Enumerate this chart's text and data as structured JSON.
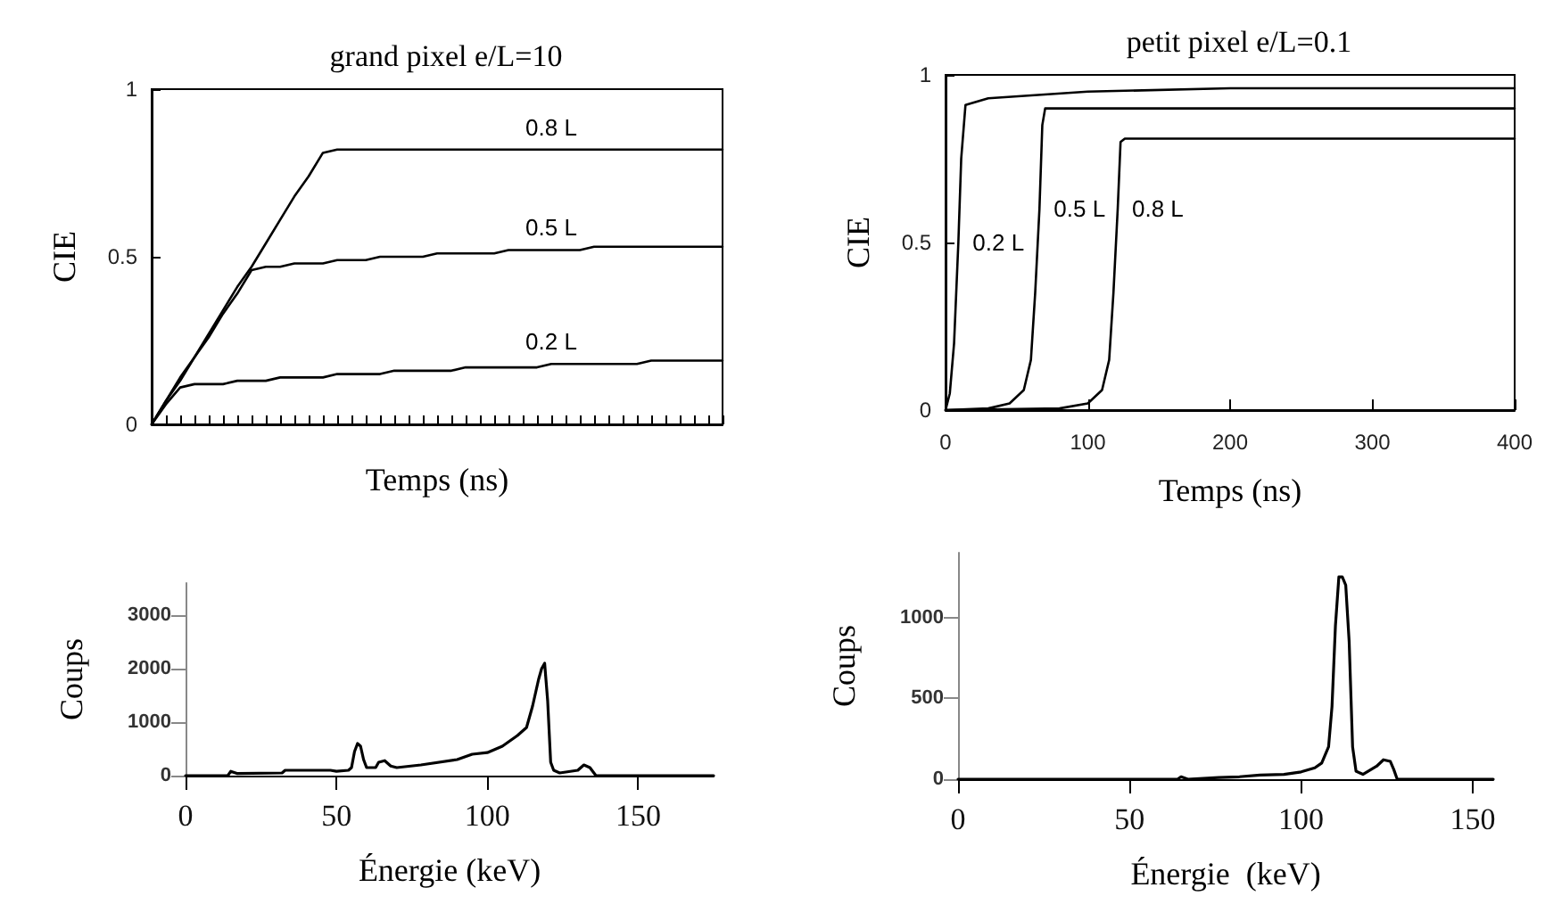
{
  "chart_data": [
    {
      "type": "line",
      "title": "grand pixel e/L=10",
      "xlabel": "Temps (ns)",
      "ylabel": "CIE",
      "categories": [
        null,
        null,
        null,
        null,
        null,
        null,
        null,
        null,
        null,
        null,
        null,
        null,
        null,
        null,
        null,
        null,
        null,
        null,
        null,
        null,
        null,
        null,
        null,
        null,
        null,
        null,
        null,
        null,
        null,
        null,
        null,
        null,
        null,
        null,
        null,
        null,
        null,
        null,
        null,
        null,
        null
      ],
      "ylim": [
        0,
        1
      ],
      "yticks": [
        0,
        0.5,
        1
      ],
      "tick_labels": "y",
      "marker": "none",
      "line_style": "solid",
      "series": [
        {
          "name": "0.8 L",
          "color": "#000000",
          "values": [
            0,
            0.07,
            0.14,
            0.2,
            0.27,
            0.34,
            0.41,
            0.47,
            0.54,
            0.61,
            0.68,
            0.74,
            0.81,
            0.82,
            0.82,
            0.82,
            0.82,
            0.82,
            0.82,
            0.82,
            0.82,
            0.82,
            0.82,
            0.82,
            0.82,
            0.82,
            0.82,
            0.82,
            0.82,
            0.82,
            0.82,
            0.82,
            0.82,
            0.82,
            0.82,
            0.82,
            0.82,
            0.82,
            0.82,
            0.82,
            0.82
          ]
        },
        {
          "name": "0.5 L",
          "color": "#000000",
          "values": [
            0,
            0.07,
            0.13,
            0.2,
            0.26,
            0.33,
            0.39,
            0.46,
            0.47,
            0.47,
            0.48,
            0.48,
            0.48,
            0.49,
            0.49,
            0.49,
            0.5,
            0.5,
            0.5,
            0.5,
            0.51,
            0.51,
            0.51,
            0.51,
            0.51,
            0.52,
            0.52,
            0.52,
            0.52,
            0.52,
            0.52,
            0.53,
            0.53,
            0.53,
            0.53,
            0.53,
            0.53,
            0.53,
            0.53,
            0.53,
            0.53
          ]
        },
        {
          "name": "0.2 L",
          "color": "#000000",
          "values": [
            0,
            0.06,
            0.11,
            0.12,
            0.12,
            0.12,
            0.13,
            0.13,
            0.13,
            0.14,
            0.14,
            0.14,
            0.14,
            0.15,
            0.15,
            0.15,
            0.15,
            0.16,
            0.16,
            0.16,
            0.16,
            0.16,
            0.17,
            0.17,
            0.17,
            0.17,
            0.17,
            0.17,
            0.18,
            0.18,
            0.18,
            0.18,
            0.18,
            0.18,
            0.18,
            0.19,
            0.19,
            0.19,
            0.19,
            0.19,
            0.19
          ]
        }
      ]
    },
    {
      "type": "line",
      "title": "petit pixel e/L=0.1",
      "xlabel": "Temps (ns)",
      "ylabel": "CIE",
      "xlim": [
        0,
        400
      ],
      "xticks": [
        0,
        100,
        200,
        300,
        400
      ],
      "ylim": [
        0,
        1
      ],
      "yticks": [
        0,
        0.5,
        1
      ],
      "marker": "none",
      "line_style": "solid",
      "series": [
        {
          "name": "0.2 L",
          "color": "#000000",
          "x": [
            0,
            3,
            6,
            9,
            11,
            14,
            30,
            100,
            200,
            400
          ],
          "values": [
            0,
            0.05,
            0.2,
            0.5,
            0.75,
            0.91,
            0.93,
            0.95,
            0.96,
            0.96
          ]
        },
        {
          "name": "0.5 L",
          "color": "#000000",
          "x": [
            0,
            30,
            45,
            55,
            60,
            63,
            66,
            68,
            70,
            400
          ],
          "values": [
            0,
            0.005,
            0.02,
            0.06,
            0.15,
            0.35,
            0.6,
            0.85,
            0.9,
            0.9
          ]
        },
        {
          "name": "0.8 L",
          "color": "#000000",
          "x": [
            0,
            80,
            100,
            110,
            115,
            118,
            121,
            123,
            126,
            400
          ],
          "values": [
            0,
            0.005,
            0.02,
            0.06,
            0.15,
            0.35,
            0.6,
            0.8,
            0.81,
            0.81
          ]
        }
      ]
    },
    {
      "type": "line",
      "xlabel": "Énergie (keV)",
      "ylabel": "Coups",
      "xlim": [
        0,
        175
      ],
      "xticks": [
        0,
        50,
        100,
        150
      ],
      "ylim": [
        0,
        3600
      ],
      "yticks": [
        0,
        1000,
        2000,
        3000
      ],
      "marker": "none",
      "line_style": "solid",
      "series": [
        {
          "color": "#000000",
          "x": [
            0,
            14,
            15,
            17,
            32,
            33,
            48,
            50,
            54,
            55,
            56,
            57,
            58,
            59,
            60,
            63,
            64,
            66,
            68,
            70,
            78,
            90,
            95,
            100,
            105,
            110,
            113,
            115,
            117,
            118,
            119,
            120,
            121,
            122,
            124,
            130,
            132,
            134,
            136,
            175
          ],
          "values": [
            0,
            0,
            80,
            40,
            50,
            100,
            100,
            80,
            100,
            150,
            450,
            600,
            550,
            300,
            150,
            150,
            250,
            280,
            180,
            150,
            200,
            300,
            400,
            430,
            550,
            750,
            900,
            1300,
            1800,
            2000,
            2100,
            1400,
            250,
            100,
            50,
            100,
            200,
            150,
            0,
            0
          ]
        }
      ]
    },
    {
      "type": "line",
      "xlabel": "Énergie  (keV)",
      "ylabel": "Coups",
      "xlim": [
        0,
        156
      ],
      "xticks": [
        0,
        50,
        100,
        150
      ],
      "ylim": [
        0,
        1400
      ],
      "yticks": [
        0,
        500,
        1000
      ],
      "marker": "none",
      "line_style": "solid",
      "series": [
        {
          "color": "#000000",
          "x": [
            0,
            64,
            65,
            67,
            76,
            82,
            88,
            95,
            100,
            104,
            106,
            108,
            109,
            110,
            111,
            112,
            113,
            114,
            115,
            116,
            118,
            122,
            124,
            126,
            127,
            128,
            156
          ],
          "values": [
            0,
            0,
            15,
            0,
            10,
            15,
            25,
            30,
            45,
            70,
            100,
            200,
            450,
            950,
            1250,
            1250,
            1200,
            850,
            200,
            50,
            30,
            80,
            120,
            110,
            60,
            0,
            0
          ]
        }
      ]
    }
  ]
}
